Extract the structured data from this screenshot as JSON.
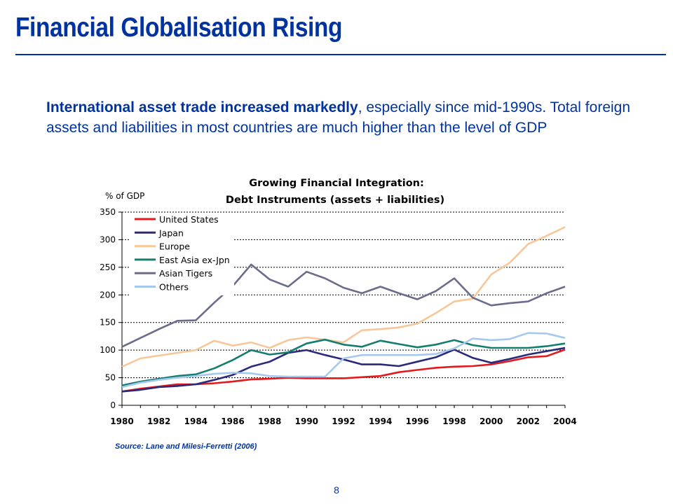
{
  "slide": {
    "title": "Financial Globalisation Rising",
    "intro_bold": "International asset trade increased markedly",
    "intro_rest": ", especially since mid-1990s. Total foreign assets and liabilities in most countries are much higher than the level of GDP",
    "source": "Source: Lane and Milesi-Ferretti (2006)",
    "page_number": "8"
  },
  "chart_data": {
    "type": "line",
    "title": "Growing Financial Integration:",
    "subtitle": "Debt Instruments (assets + liabilities)",
    "ylabel": "% of GDP",
    "xlabel": "",
    "ylim": [
      0,
      350
    ],
    "yticks": [
      "0",
      "50",
      "100",
      "150",
      "200",
      "250",
      "300",
      "350"
    ],
    "x": [
      1980,
      1981,
      1982,
      1983,
      1984,
      1985,
      1986,
      1987,
      1988,
      1989,
      1990,
      1991,
      1992,
      1993,
      1994,
      1995,
      1996,
      1997,
      1998,
      1999,
      2000,
      2001,
      2002,
      2003,
      2004
    ],
    "xtick_labels": [
      "1980",
      "1982",
      "1984",
      "1986",
      "1988",
      "1990",
      "1992",
      "1994",
      "1996",
      "1998",
      "2000",
      "2002",
      "2004"
    ],
    "grid": "horizontal dotted",
    "legend_position": "top-left",
    "series": [
      {
        "name": "United States",
        "color": "#e3191c",
        "values": [
          25,
          30,
          34,
          38,
          38,
          40,
          43,
          47,
          48,
          50,
          49,
          49,
          49,
          51,
          53,
          60,
          64,
          68,
          70,
          71,
          74,
          80,
          87,
          89,
          101
        ]
      },
      {
        "name": "Japan",
        "color": "#2a2a7a",
        "values": [
          25,
          28,
          33,
          35,
          38,
          46,
          55,
          70,
          79,
          95,
          100,
          91,
          83,
          74,
          74,
          71,
          79,
          87,
          101,
          86,
          77,
          84,
          92,
          98,
          104
        ]
      },
      {
        "name": "Europe",
        "color": "#f7c79a",
        "values": [
          70,
          85,
          90,
          95,
          100,
          117,
          108,
          114,
          104,
          118,
          123,
          119,
          114,
          136,
          138,
          141,
          148,
          167,
          188,
          193,
          237,
          258,
          292,
          307,
          323
        ]
      },
      {
        "name": "East Asia ex-Jpn",
        "color": "#137e6f",
        "values": [
          36,
          43,
          48,
          53,
          56,
          67,
          82,
          100,
          92,
          96,
          112,
          119,
          110,
          106,
          117,
          111,
          105,
          110,
          118,
          109,
          104,
          104,
          104,
          107,
          112
        ]
      },
      {
        "name": "Asian Tigers",
        "color": "#6b6b8b",
        "values": [
          106,
          122,
          138,
          153,
          154,
          186,
          216,
          255,
          228,
          215,
          242,
          230,
          213,
          203,
          215,
          203,
          192,
          207,
          230,
          195,
          181,
          185,
          188,
          203,
          215
        ]
      },
      {
        "name": "Others",
        "color": "#a6c8ee",
        "values": [
          33,
          41,
          46,
          50,
          53,
          57,
          59,
          58,
          53,
          52,
          52,
          52,
          85,
          91,
          91,
          91,
          91,
          93,
          103,
          121,
          118,
          120,
          131,
          130,
          122
        ]
      }
    ]
  }
}
